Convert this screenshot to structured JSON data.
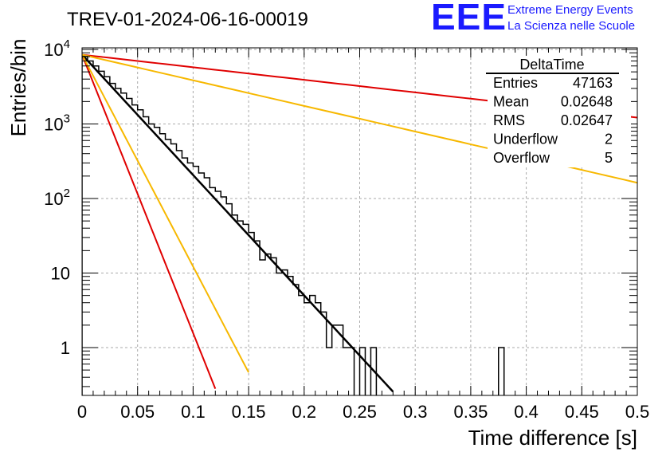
{
  "logo": {
    "mark": "EEE",
    "line1": "Extreme Energy Events",
    "line2": "La Scienza nelle Scuole",
    "color": "#1a1aff"
  },
  "colors": {
    "histogram": "#000000",
    "fit": "#000000",
    "red": "#e00000",
    "orange": "#f7b800",
    "grid": "#aaaaaa"
  },
  "chart_data": {
    "type": "histogram",
    "title": "TREV-01-2024-06-16-00019",
    "xlabel": "Time difference [s]",
    "ylabel": "Entries/bin",
    "xlim": [
      0,
      0.5
    ],
    "ylim": [
      0.2,
      15000
    ],
    "yscale": "log",
    "grid": true,
    "x_ticks": [
      "0",
      "0.05",
      "0.1",
      "0.15",
      "0.2",
      "0.25",
      "0.3",
      "0.35",
      "0.4",
      "0.45",
      "0.5"
    ],
    "x_tick_values": [
      0,
      0.05,
      0.1,
      0.15,
      0.2,
      0.25,
      0.3,
      0.35,
      0.4,
      0.45,
      0.5
    ],
    "y_ticks": [
      {
        "value": 1,
        "base": "1",
        "exp": ""
      },
      {
        "value": 10,
        "base": "10",
        "exp": ""
      },
      {
        "value": 100,
        "base": "10",
        "exp": "2"
      },
      {
        "value": 1000,
        "base": "10",
        "exp": "3"
      },
      {
        "value": 10000,
        "base": "10",
        "exp": "4"
      }
    ],
    "bin_width": 0.005,
    "bins": [
      {
        "x0": 0.0,
        "y": 8000
      },
      {
        "x0": 0.005,
        "y": 7000
      },
      {
        "x0": 0.01,
        "y": 6000
      },
      {
        "x0": 0.015,
        "y": 5100
      },
      {
        "x0": 0.02,
        "y": 4300
      },
      {
        "x0": 0.025,
        "y": 3500
      },
      {
        "x0": 0.03,
        "y": 3000
      },
      {
        "x0": 0.035,
        "y": 2600
      },
      {
        "x0": 0.04,
        "y": 2200
      },
      {
        "x0": 0.045,
        "y": 1800
      },
      {
        "x0": 0.05,
        "y": 1550
      },
      {
        "x0": 0.055,
        "y": 1250
      },
      {
        "x0": 0.06,
        "y": 1000
      },
      {
        "x0": 0.065,
        "y": 900
      },
      {
        "x0": 0.07,
        "y": 740
      },
      {
        "x0": 0.075,
        "y": 620
      },
      {
        "x0": 0.08,
        "y": 540
      },
      {
        "x0": 0.085,
        "y": 440
      },
      {
        "x0": 0.09,
        "y": 350
      },
      {
        "x0": 0.095,
        "y": 300
      },
      {
        "x0": 0.1,
        "y": 270
      },
      {
        "x0": 0.105,
        "y": 220
      },
      {
        "x0": 0.11,
        "y": 190
      },
      {
        "x0": 0.115,
        "y": 140
      },
      {
        "x0": 0.12,
        "y": 125
      },
      {
        "x0": 0.125,
        "y": 105
      },
      {
        "x0": 0.13,
        "y": 85
      },
      {
        "x0": 0.135,
        "y": 60
      },
      {
        "x0": 0.14,
        "y": 50
      },
      {
        "x0": 0.145,
        "y": 45
      },
      {
        "x0": 0.15,
        "y": 35
      },
      {
        "x0": 0.155,
        "y": 27
      },
      {
        "x0": 0.16,
        "y": 15
      },
      {
        "x0": 0.165,
        "y": 18
      },
      {
        "x0": 0.17,
        "y": 16
      },
      {
        "x0": 0.175,
        "y": 10
      },
      {
        "x0": 0.18,
        "y": 11
      },
      {
        "x0": 0.185,
        "y": 9
      },
      {
        "x0": 0.19,
        "y": 7
      },
      {
        "x0": 0.195,
        "y": 5
      },
      {
        "x0": 0.2,
        "y": 4
      },
      {
        "x0": 0.205,
        "y": 5
      },
      {
        "x0": 0.21,
        "y": 4
      },
      {
        "x0": 0.215,
        "y": 3
      },
      {
        "x0": 0.22,
        "y": 1
      },
      {
        "x0": 0.225,
        "y": 2
      },
      {
        "x0": 0.23,
        "y": 2
      },
      {
        "x0": 0.235,
        "y": 1
      },
      {
        "x0": 0.24,
        "y": 1
      },
      {
        "x0": 0.245,
        "y": 0
      },
      {
        "x0": 0.25,
        "y": 1
      },
      {
        "x0": 0.255,
        "y": 0
      },
      {
        "x0": 0.26,
        "y": 1
      },
      {
        "x0": 0.375,
        "y": 1
      }
    ],
    "lines": [
      {
        "color": "#000000",
        "width": 2.5,
        "y0": 8500,
        "tau": 0.0269,
        "x_end": 0.28
      },
      {
        "color": "#e00000",
        "width": 2,
        "y0": 8500,
        "tau": 0.01163,
        "x_end": 0.12
      },
      {
        "color": "#f7b800",
        "width": 2,
        "y0": 8500,
        "tau": 0.01528,
        "x_end": 0.15
      },
      {
        "color": "#e00000",
        "width": 2,
        "y0": 8500,
        "tau": 0.2575,
        "x_end": 0.5
      },
      {
        "color": "#f7b800",
        "width": 2,
        "y0": 8500,
        "tau": 0.1264,
        "x_end": 0.5
      }
    ],
    "stats": {
      "title": "DeltaTime",
      "rows": [
        {
          "label": "Entries",
          "value": "47163"
        },
        {
          "label": "Mean",
          "value": "0.02648"
        },
        {
          "label": "RMS",
          "value": "0.02647"
        },
        {
          "label": "Underflow",
          "value": "2"
        },
        {
          "label": "Overflow",
          "value": "5"
        }
      ]
    }
  }
}
